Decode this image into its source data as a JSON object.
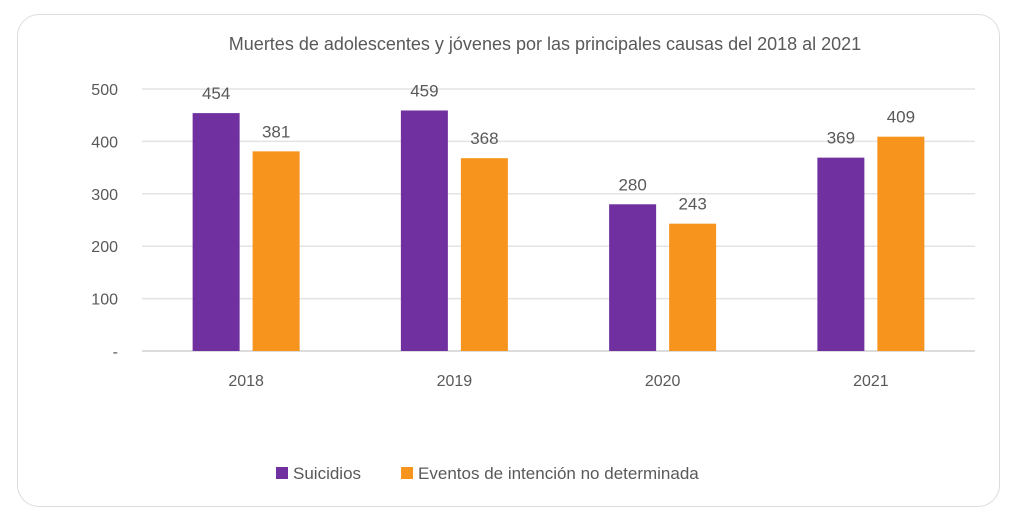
{
  "chart_data": {
    "type": "bar",
    "title": "Muertes de adolescentes y jóvenes por las principales causas del 2018 al 2021",
    "categories": [
      "2018",
      "2019",
      "2020",
      "2021"
    ],
    "series": [
      {
        "name": "Suicidios",
        "color": "#7030a0",
        "values": [
          454,
          459,
          280,
          369
        ]
      },
      {
        "name": "Eventos de intención no determinada",
        "color": "#f7941d",
        "values": [
          381,
          368,
          243,
          409
        ]
      }
    ],
    "yticks": [
      0,
      100,
      200,
      300,
      400,
      500
    ],
    "ytick_labels": [
      "-",
      "100",
      "200",
      "300",
      "400",
      "500"
    ],
    "ylim": [
      0,
      500
    ],
    "xlabel": "",
    "ylabel": "",
    "grid": true,
    "legend": "bottom"
  }
}
